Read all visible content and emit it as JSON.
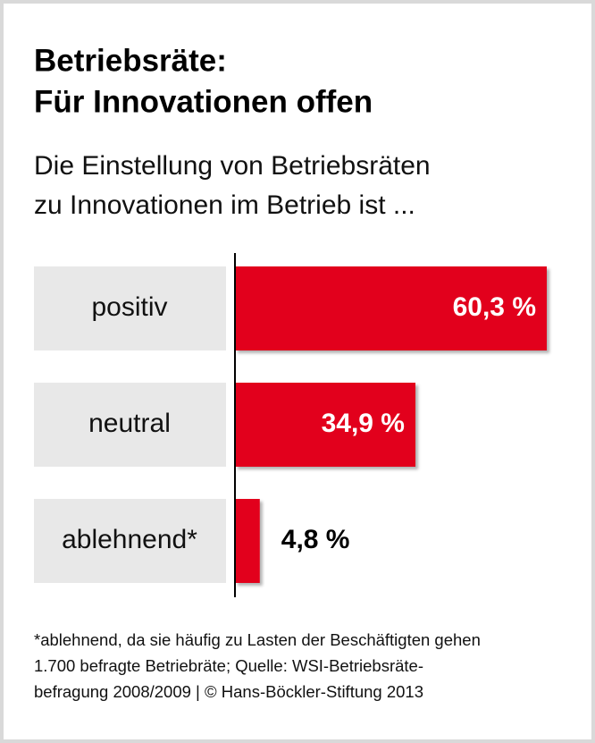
{
  "chart_data": {
    "type": "bar",
    "orientation": "horizontal",
    "title": [
      "Betriebsräte:",
      "Für Innovationen offen"
    ],
    "subtitle": [
      "Die Einstellung von Betriebsräten",
      "zu Innovationen im Betrieb ist ..."
    ],
    "categories": [
      "positiv",
      "neutral",
      "ablehnend*"
    ],
    "values": [
      60.3,
      34.9,
      4.8
    ],
    "value_labels": [
      "60,3 %",
      "34,9 %",
      "4,8 %"
    ],
    "color": "#e2001a",
    "footnote": [
      "*ablehnend, da sie häufig zu Lasten der Beschäftigten gehen",
      "1.700 befragte Betriebräte; Quelle: WSI-Betriebsräte-",
      "befragung 2008/2009 | © Hans-Böckler-Stiftung 2013"
    ]
  }
}
